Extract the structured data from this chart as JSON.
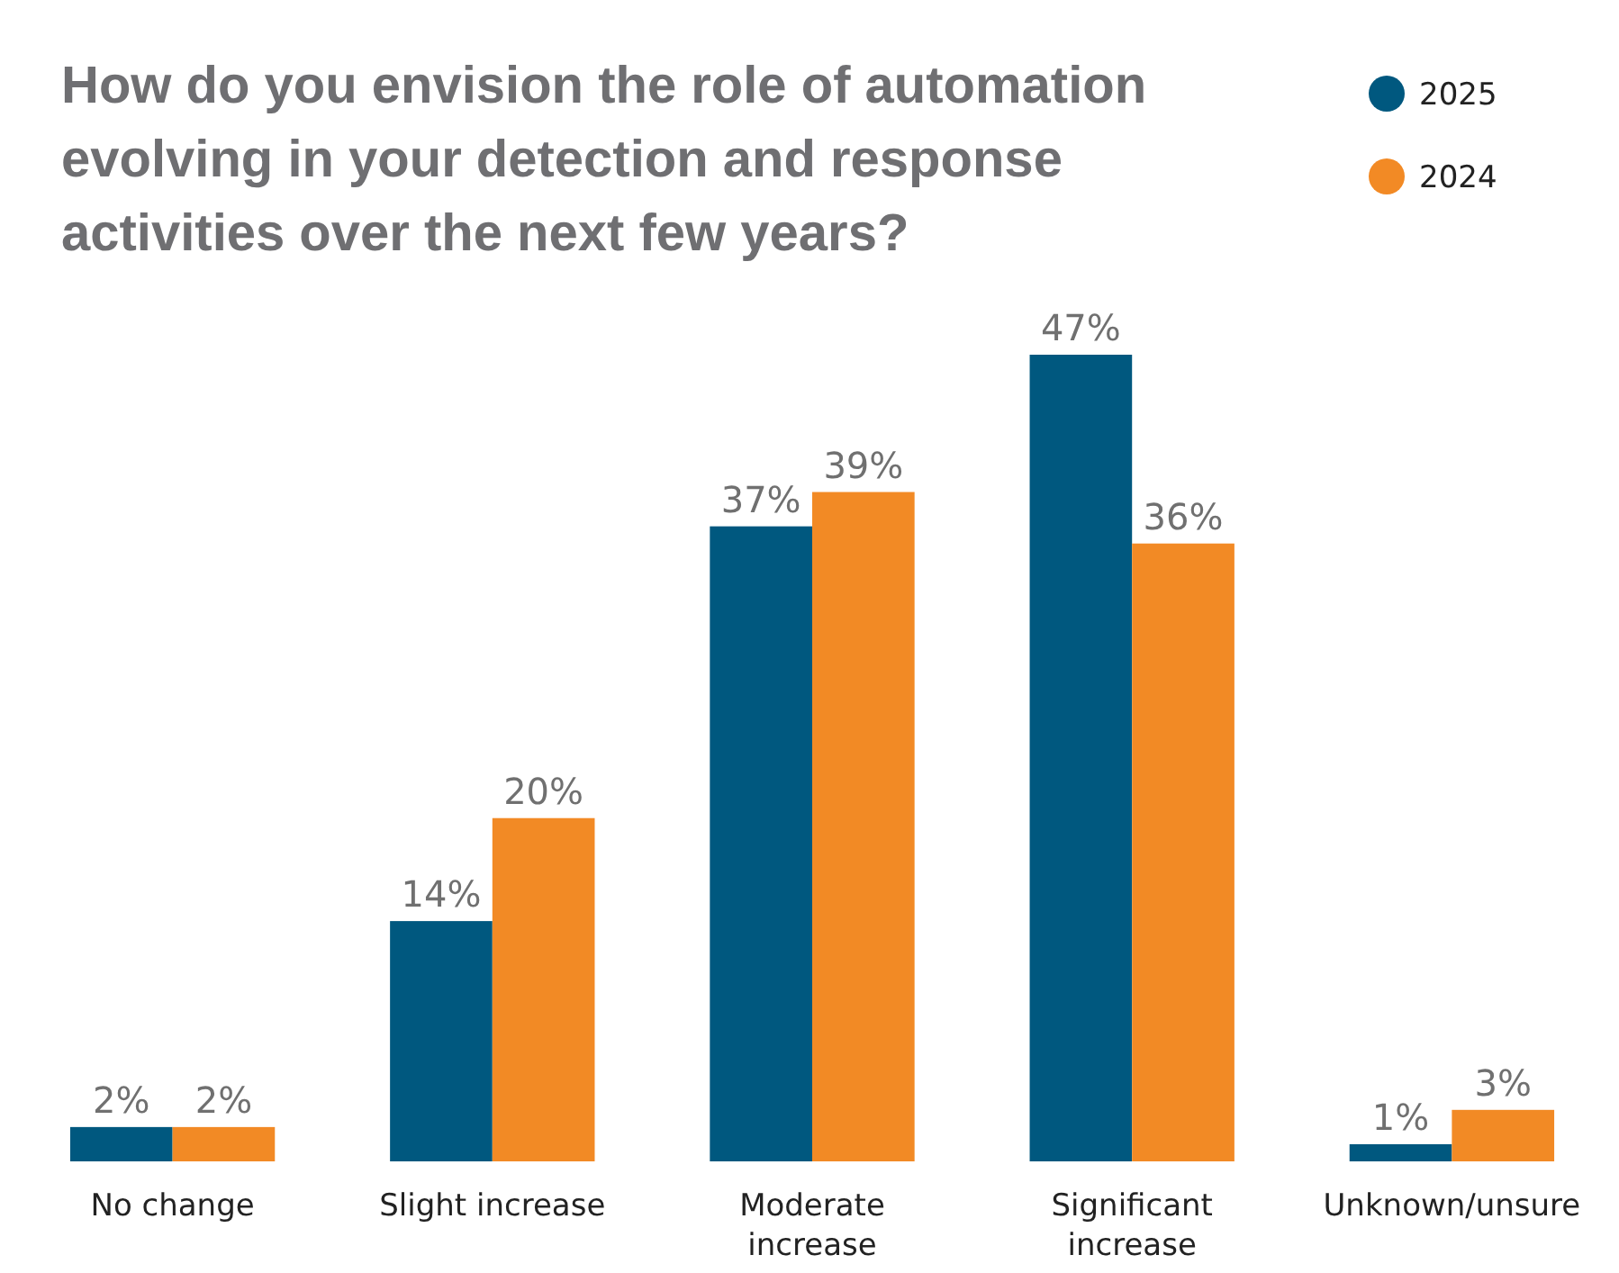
{
  "chart_data": {
    "type": "bar",
    "title": "How do you envision the role of automation evolving in your detection and response activities over the next few years?",
    "categories": [
      "No change",
      "Slight increase",
      "Moderate increase",
      "Significant increase",
      "Unknown/unsure"
    ],
    "series": [
      {
        "name": "2025",
        "color": "#00587f",
        "values": [
          2,
          14,
          37,
          47,
          1
        ],
        "value_labels": [
          "2%",
          "14%",
          "37%",
          "47%",
          "1%"
        ]
      },
      {
        "name": "2024",
        "color": "#f28a25",
        "values": [
          2,
          20,
          39,
          36,
          3
        ],
        "value_labels": [
          "2%",
          "20%",
          "39%",
          "36%",
          "3%"
        ]
      }
    ],
    "legend": "top right"
  }
}
